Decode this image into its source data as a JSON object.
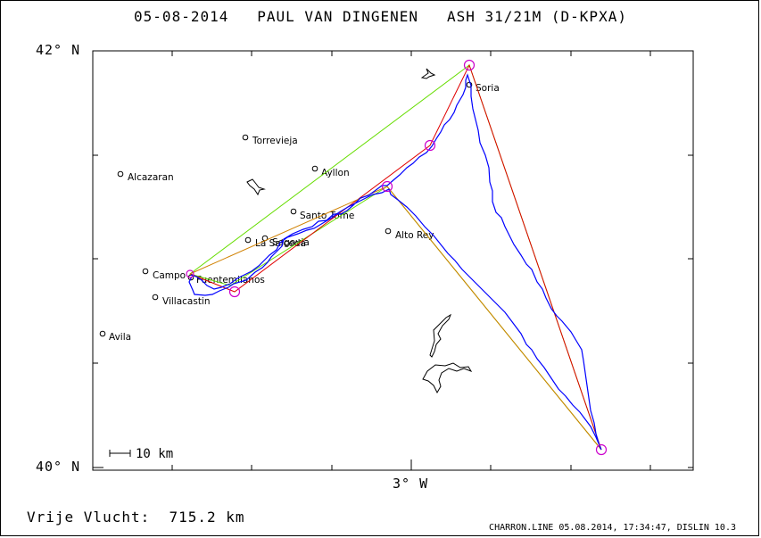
{
  "header": {
    "date": "05-08-2014",
    "pilot": "PAUL VAN DINGENEN",
    "glider": "ASH 31/21M (D-KPXA)"
  },
  "axes": {
    "lat_top": "42° N",
    "lat_bottom": "40° N",
    "lon_mid": "3° W"
  },
  "scale": {
    "label": "10 km"
  },
  "summary": {
    "label": "Vrije Vlucht:",
    "distance": "715.2 km"
  },
  "footer": {
    "file_info": "CHARRON.LINE 05.08.2014, 17:34:47, DISLIN 10.3"
  },
  "towns": [
    "Soria",
    "Torrevieja",
    "Ayllon",
    "Alcazaran",
    "Santo Tome",
    "Alto Rey",
    "La Salceda",
    "Segovia",
    "Campo",
    "Fuentemilanos",
    "Villacastin",
    "Avila"
  ],
  "colors": {
    "track": "#0000ff",
    "task_red": "#e00000",
    "task_green": "#66dd00",
    "task_orange": "#d08000",
    "turnpoint": "#cc00cc",
    "lake_outline": "#000000"
  }
}
